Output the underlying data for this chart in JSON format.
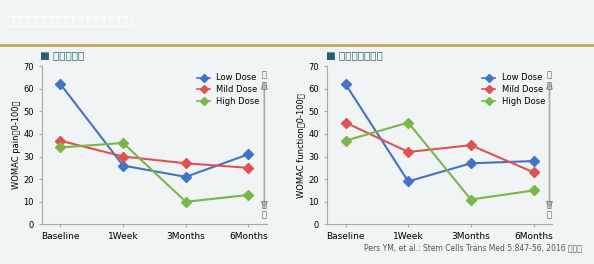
{
  "title": "培養幹細胞治療後の評価スコアの推移",
  "title_bg_color": "#4a7c82",
  "title_text_color": "#ffffff",
  "accent_line_color": "#c8a84b",
  "bg_color": "#f0f4f5",
  "subtitle1": "■ 痛みスコア",
  "subtitle2": "■ 関節機能スコア",
  "subtitle_color": "#2a6070",
  "xlabel": [
    "Baseline",
    "1Week",
    "3Months",
    "6Months"
  ],
  "ylabel1": "WOMAC pain（0-100）",
  "ylabel2": "WOMAC function（0-100）",
  "legend_labels": [
    "Low Dose",
    "Mild Dose",
    "High Dose"
  ],
  "colors": [
    "#4472c4",
    "#e05252",
    "#7ab648"
  ],
  "pain_low": [
    62,
    26,
    21,
    31
  ],
  "pain_mild": [
    37,
    30,
    27,
    25
  ],
  "pain_high": [
    34,
    36,
    10,
    13
  ],
  "func_low": [
    62,
    19,
    27,
    28
  ],
  "func_mild": [
    45,
    32,
    35,
    23
  ],
  "func_high": [
    37,
    45,
    11,
    15
  ],
  "ylim": [
    0,
    70
  ],
  "yticks": [
    0,
    10,
    20,
    30,
    40,
    50,
    60,
    70
  ],
  "arrow_label_top": "悪\nい",
  "arrow_label_bottom": "良\nい",
  "citation": "Pers YM, et al.: Stem Cells Trans Med 5:847-56, 2016 を改変"
}
